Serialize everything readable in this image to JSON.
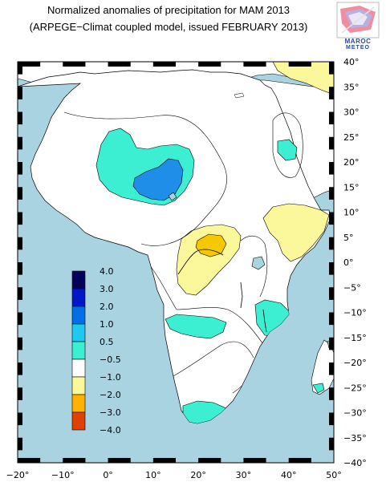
{
  "title": {
    "line1": "Normalized anomalies of precipitation for MAM 2013",
    "line2": "(ARPEGE−Climat coupled model, issued FEBRUARY 2013)"
  },
  "logo": {
    "text1": "MAROC",
    "text2": "METEO"
  },
  "axes": {
    "lon_ticks": [
      "−20°",
      "−10°",
      "0°",
      "10°",
      "20°",
      "30°",
      "40°",
      "50°"
    ],
    "lat_ticks": [
      "40°",
      "35°",
      "30°",
      "25°",
      "20°",
      "15°",
      "10°",
      "5°",
      "0°",
      "−5°",
      "−10°",
      "−15°",
      "−20°",
      "−25°",
      "−30°",
      "−35°",
      "−40°"
    ]
  },
  "legend": {
    "levels": [
      "4.0",
      "3.0",
      "2.0",
      "1.0",
      "0.5",
      "−0.5",
      "−1.0",
      "−2.0",
      "−3.0",
      "−4.0"
    ],
    "colors": [
      "#00005a",
      "#0018c8",
      "#0070e8",
      "#1ec8f0",
      "#3ceed2",
      "#ffffff",
      "#fbf89c",
      "#ffb000",
      "#e04000",
      "#800000"
    ]
  },
  "colors": {
    "ocean": "#aad3e2",
    "land": "#ffffff",
    "wet": "#3ceed2",
    "very_wet": "#1e8ee8",
    "dry": "#fbf89c",
    "very_dry": "#f5c800"
  }
}
